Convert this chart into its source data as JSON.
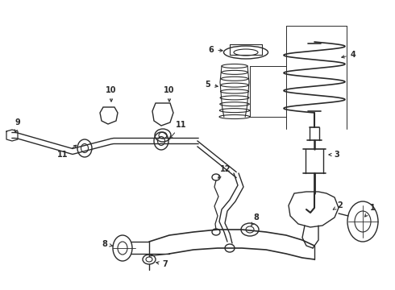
{
  "bg_color": "#ffffff",
  "line_color": "#2a2a2a",
  "lw": 1.0,
  "fig_w": 4.9,
  "fig_h": 3.6,
  "dpi": 100
}
